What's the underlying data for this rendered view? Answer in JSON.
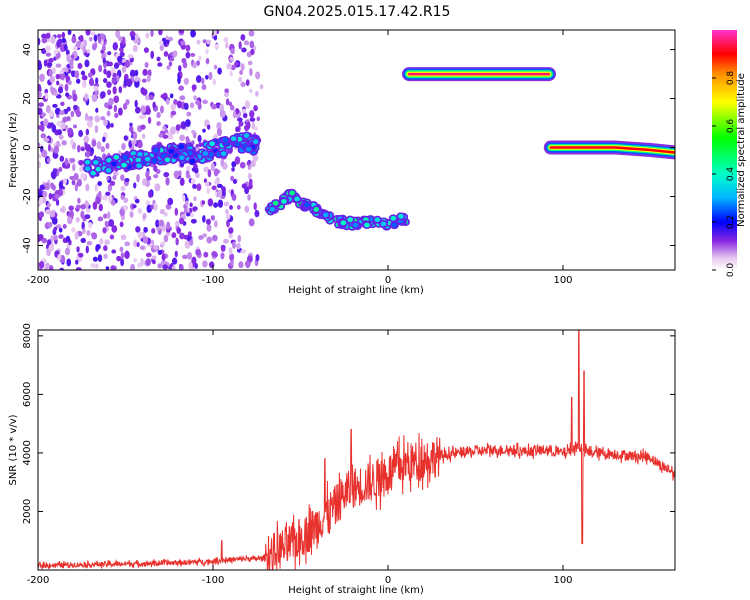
{
  "title": "GN04.2025.015.17.42.R15",
  "colorbar": {
    "label": "Normalized spectral amplitude",
    "ticks": [
      "0.0",
      "0.2",
      "0.4",
      "0.6",
      "0.8"
    ],
    "tick_values": [
      0.0,
      0.2,
      0.4,
      0.6,
      0.8
    ],
    "range": [
      0,
      1
    ]
  },
  "chart_data": [
    {
      "type": "heatmap",
      "title": "",
      "xlabel": "Height of straight line (km)",
      "ylabel": "Frequency (Hz)",
      "xlim": [
        -200,
        164
      ],
      "ylim": [
        -50,
        48
      ],
      "xticks": [
        -200,
        -100,
        0,
        100
      ],
      "xtick_labels": [
        "-200",
        "-100",
        "0",
        "100"
      ],
      "yticks": [
        -40,
        -20,
        0,
        20,
        40
      ],
      "ytick_labels": [
        "-40",
        "-20",
        "0",
        "20",
        "40"
      ],
      "features": [
        {
          "name": "noise_scatter",
          "x_range": [
            -200,
            -72
          ],
          "y_range": [
            -50,
            48
          ],
          "amplitude": 0.1
        },
        {
          "name": "descending_trace",
          "points": [
            [
              -172,
              -8
            ],
            [
              -160,
              -7
            ],
            [
              -150,
              -6
            ],
            [
              -140,
              -4
            ],
            [
              -130,
              -3
            ],
            [
              -120,
              -2
            ],
            [
              -110,
              -3
            ],
            [
              -100,
              -1
            ],
            [
              -90,
              1
            ],
            [
              -80,
              2
            ],
            [
              -75,
              1
            ]
          ],
          "amplitude": 0.3
        },
        {
          "name": "trace_segment_2",
          "points": [
            [
              -68,
              -26
            ],
            [
              -62,
              -23
            ],
            [
              -55,
              -19
            ],
            [
              -50,
              -23
            ],
            [
              -45,
              -24
            ],
            [
              -40,
              -26
            ],
            [
              -30,
              -30
            ],
            [
              -20,
              -31
            ],
            [
              -10,
              -30
            ],
            [
              0,
              -31
            ],
            [
              10,
              -29
            ]
          ],
          "amplitude": 0.35
        },
        {
          "name": "constant_line_30hz",
          "points": [
            [
              12,
              30
            ],
            [
              92,
              30
            ]
          ],
          "amplitude": 0.95
        },
        {
          "name": "constant_line_0hz",
          "points": [
            [
              93,
              0
            ],
            [
              100,
              0
            ],
            [
              110,
              0
            ],
            [
              130,
              0
            ],
            [
              150,
              -1
            ],
            [
              164,
              -2
            ]
          ],
          "amplitude": 0.9
        }
      ]
    },
    {
      "type": "line",
      "title": "",
      "xlabel": "Height of straight line (km)",
      "ylabel": "SNR (10 * v/v)",
      "xlim": [
        -200,
        164
      ],
      "ylim": [
        0,
        8200
      ],
      "xticks": [
        -200,
        -100,
        0,
        100
      ],
      "xtick_labels": [
        "-200",
        "-100",
        "0",
        "100"
      ],
      "yticks": [
        2000,
        4000,
        6000,
        8000
      ],
      "ytick_labels": [
        "2000",
        "4000",
        "6000",
        "8000"
      ],
      "color": "#e8302c",
      "series": [
        {
          "x": [
            -200,
            -180,
            -160,
            -140,
            -120,
            -100,
            -90,
            -80,
            -70,
            -65,
            -60,
            -55,
            -50,
            -45,
            -40,
            -35,
            -30,
            -25,
            -20,
            -15,
            -10,
            -5,
            0,
            5,
            10,
            15,
            20,
            25,
            30,
            40,
            50,
            60,
            70,
            80,
            90,
            100,
            105,
            108,
            110,
            112,
            115,
            120,
            130,
            140,
            150,
            155,
            160,
            164
          ],
          "values": [
            150,
            180,
            200,
            220,
            250,
            300,
            350,
            380,
            400,
            600,
            750,
            900,
            1100,
            1300,
            1600,
            1900,
            2200,
            2600,
            2800,
            2900,
            3000,
            3100,
            3300,
            3500,
            3600,
            3700,
            3800,
            3850,
            3900,
            4000,
            4050,
            4100,
            4100,
            4050,
            4100,
            4000,
            4100,
            4200,
            4200,
            4100,
            4000,
            4000,
            3950,
            3900,
            3850,
            3600,
            3450,
            3300
          ],
          "spikes": [
            [
              -95,
              1000
            ],
            [
              -36,
              3800
            ],
            [
              -21,
              4800
            ],
            [
              -5,
              3600
            ],
            [
              105,
              5900
            ],
            [
              109,
              8200
            ],
            [
              111,
              900
            ],
            [
              112,
              6800
            ]
          ]
        }
      ]
    }
  ]
}
